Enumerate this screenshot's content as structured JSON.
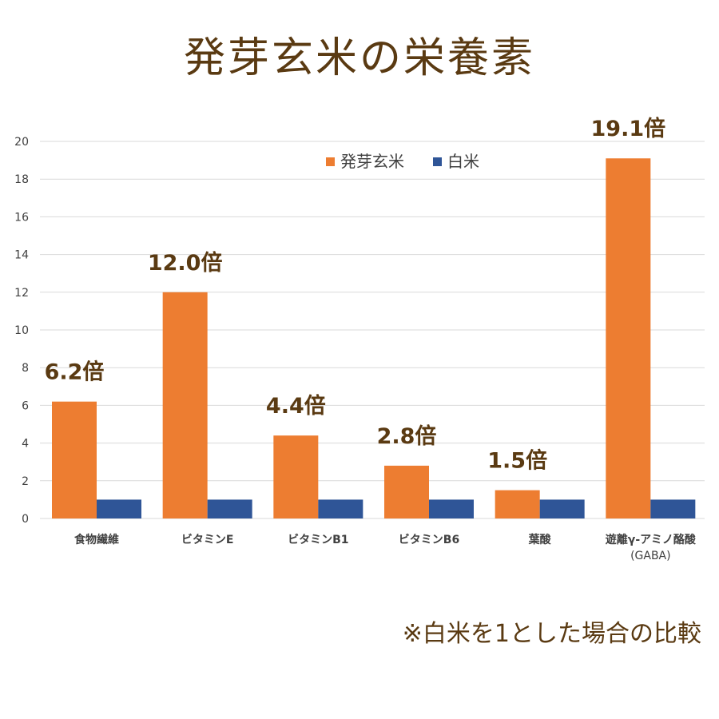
{
  "chart_data": {
    "type": "bar",
    "title": "発芽玄米の栄養素",
    "categories": [
      "食物繊維",
      "ビタミンE",
      "ビタミンB1",
      "ビタミンB6",
      "葉酸",
      "遊離γ-アミノ酪酸\n(GABA)"
    ],
    "series": [
      {
        "name": "発芽玄米",
        "values": [
          6.2,
          12.0,
          4.4,
          2.8,
          1.5,
          19.1
        ]
      },
      {
        "name": "白米",
        "values": [
          1,
          1,
          1,
          1,
          1,
          1
        ]
      }
    ],
    "data_labels": [
      "6.2倍",
      "12.0倍",
      "4.4倍",
      "2.8倍",
      "1.5倍",
      "19.1倍"
    ],
    "ylim": [
      0,
      20
    ],
    "yticks": [
      0,
      2,
      4,
      6,
      8,
      10,
      12,
      14,
      16,
      18,
      20
    ],
    "grid": true,
    "legend_position": "top-center",
    "colors": {
      "発芽玄米": "#ed7d31",
      "白米": "#2f5597",
      "label_text": "#5a3a12",
      "grid": "#d9d9d9",
      "axis_text": "#404040"
    },
    "note": "※白米を1とした場合の比較"
  }
}
